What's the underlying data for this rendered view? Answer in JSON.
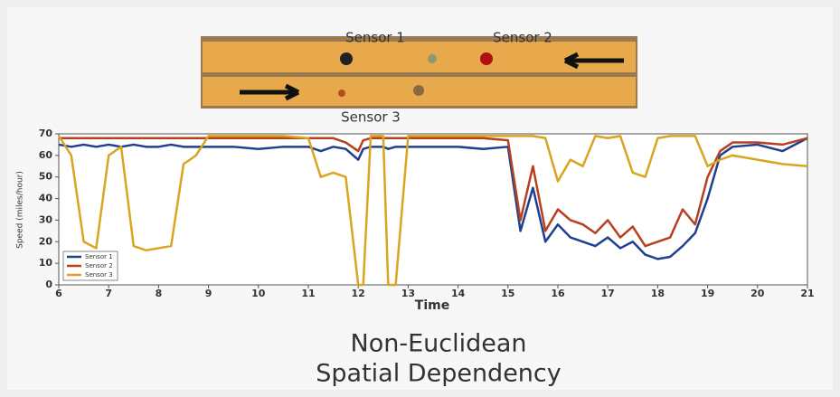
{
  "diagram": {
    "sensors": [
      "Sensor 1",
      "Sensor 2",
      "Sensor 3"
    ]
  },
  "chart_data": {
    "type": "line",
    "x_label": "Time",
    "y_label": "Speed (miles/hour)",
    "x": [
      6,
      6.25,
      6.5,
      6.75,
      7,
      7.25,
      7.5,
      7.75,
      8,
      8.25,
      8.5,
      8.75,
      9,
      9.5,
      10,
      10.5,
      11,
      11.25,
      11.5,
      11.75,
      12,
      12.1,
      12.25,
      12.5,
      12.6,
      12.75,
      13,
      13.5,
      14,
      14.5,
      15,
      15.25,
      15.5,
      15.75,
      16,
      16.25,
      16.5,
      16.75,
      17,
      17.25,
      17.5,
      17.75,
      18,
      18.25,
      18.5,
      18.75,
      19,
      19.25,
      19.5,
      20,
      20.5,
      21
    ],
    "series": [
      {
        "name": "Sensor 1",
        "color": "#1f3f8f",
        "values": [
          65,
          64,
          65,
          64,
          65,
          64,
          65,
          64,
          64,
          65,
          64,
          64,
          64,
          64,
          63,
          64,
          64,
          62,
          64,
          63,
          58,
          63,
          64,
          64,
          63,
          64,
          64,
          64,
          64,
          63,
          64,
          25,
          45,
          20,
          28,
          22,
          20,
          18,
          22,
          17,
          20,
          14,
          12,
          13,
          18,
          24,
          40,
          60,
          64,
          65,
          62,
          68
        ]
      },
      {
        "name": "Sensor 2",
        "color": "#b8401f",
        "values": [
          68,
          68,
          68,
          68,
          68,
          68,
          68,
          68,
          68,
          68,
          68,
          68,
          68,
          68,
          68,
          68,
          68,
          68,
          68,
          66,
          62,
          67,
          68,
          68,
          68,
          68,
          68,
          68,
          68,
          68,
          67,
          30,
          55,
          25,
          35,
          30,
          28,
          24,
          30,
          22,
          27,
          18,
          20,
          22,
          35,
          28,
          50,
          62,
          66,
          66,
          65,
          68
        ]
      },
      {
        "name": "Sensor 3",
        "color": "#d9a520",
        "values": [
          69,
          60,
          20,
          17,
          60,
          64,
          18,
          16,
          17,
          18,
          56,
          60,
          69,
          69,
          69,
          69,
          68,
          50,
          52,
          50,
          0,
          0,
          69,
          69,
          0,
          0,
          69,
          69,
          69,
          69,
          69,
          69,
          69,
          68,
          48,
          58,
          55,
          69,
          68,
          69,
          52,
          50,
          68,
          69,
          69,
          69,
          55,
          58,
          60,
          58,
          56,
          55
        ]
      }
    ],
    "xlim": [
      6,
      21
    ],
    "xticks": [
      6,
      7,
      8,
      9,
      10,
      11,
      12,
      13,
      14,
      15,
      16,
      17,
      18,
      19,
      20,
      21
    ],
    "ylim": [
      0,
      70
    ],
    "yticks": [
      0,
      10,
      20,
      30,
      40,
      50,
      60,
      70
    ]
  },
  "caption": [
    "Non-Euclidean",
    "Spatial Dependency"
  ]
}
